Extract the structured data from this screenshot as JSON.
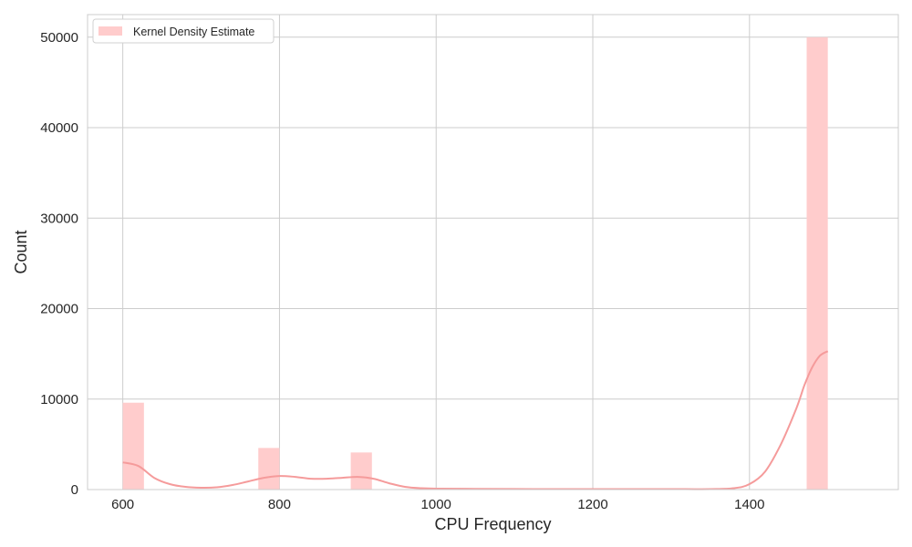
{
  "chart_data": {
    "type": "bar",
    "title": "",
    "xlabel": "CPU Frequency",
    "ylabel": "Count",
    "xlim": [
      555,
      1590
    ],
    "ylim": [
      0,
      52500
    ],
    "x_ticks": [
      600,
      800,
      1000,
      1200,
      1400
    ],
    "y_ticks": [
      0,
      10000,
      20000,
      30000,
      40000,
      50000
    ],
    "grid": true,
    "legend": {
      "position": "top-left",
      "entries": [
        "Kernel Density Estimate"
      ]
    },
    "bar_color": "#ffcccc",
    "kde_color": "#f59b9b",
    "bars": [
      {
        "x_start": 600,
        "x_end": 627,
        "value": 9600
      },
      {
        "x_start": 773,
        "x_end": 800,
        "value": 4600
      },
      {
        "x_start": 891,
        "x_end": 918,
        "value": 4100
      },
      {
        "x_start": 1473,
        "x_end": 1500,
        "value": 50000
      }
    ],
    "kde": {
      "x": [
        600,
        620,
        640,
        660,
        680,
        700,
        720,
        740,
        760,
        780,
        800,
        820,
        840,
        860,
        880,
        900,
        920,
        940,
        960,
        980,
        1000,
        1050,
        1100,
        1150,
        1200,
        1250,
        1300,
        1350,
        1380,
        1400,
        1420,
        1440,
        1460,
        1470,
        1480,
        1490,
        1500
      ],
      "y": [
        3000,
        2600,
        1300,
        600,
        300,
        200,
        250,
        500,
        900,
        1300,
        1500,
        1400,
        1200,
        1200,
        1300,
        1400,
        1200,
        700,
        300,
        150,
        100,
        80,
        60,
        50,
        50,
        50,
        50,
        50,
        150,
        600,
        2000,
        5000,
        9000,
        11500,
        13500,
        14800,
        15300
      ]
    }
  }
}
